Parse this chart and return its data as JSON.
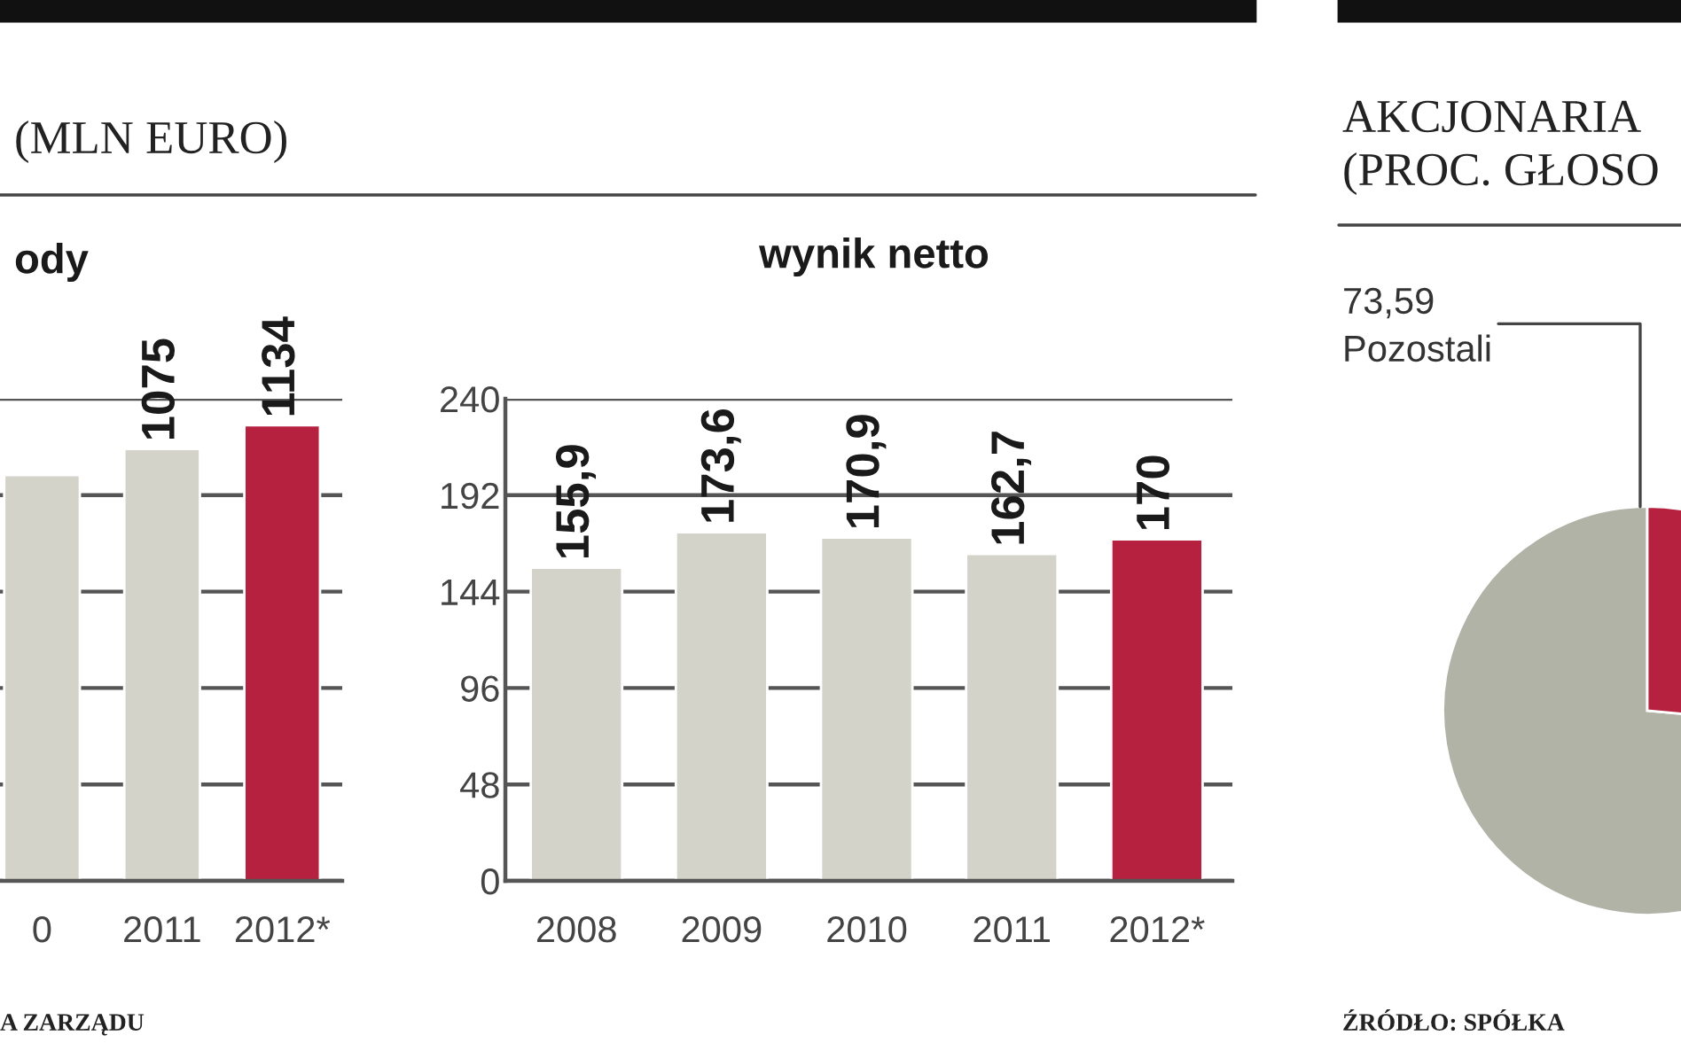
{
  "chart_data": [
    {
      "type": "bar",
      "title": "ody",
      "subtitle": "(MLN EURO)",
      "categories": [
        "0",
        "2011",
        "2012*"
      ],
      "values": [
        1010,
        1075,
        1134
      ],
      "colors": [
        "#d3d3c9",
        "#d3d3c9",
        "#b5213f"
      ],
      "value_labels": [
        null,
        "1075",
        "1134"
      ],
      "ylim": [
        0,
        1200
      ],
      "yticks": [
        {
          "value": 0,
          "label": null
        },
        {
          "value": 240,
          "label": null
        },
        {
          "value": 480,
          "label": null
        },
        {
          "value": 720,
          "label": null
        },
        {
          "value": 960,
          "label": null
        },
        {
          "value": 1200,
          "label": null
        }
      ],
      "grid": "y",
      "tick_labels": "x",
      "annotations": [
        "A ZARZĄDU"
      ]
    },
    {
      "type": "bar",
      "title": "wynik netto",
      "categories": [
        "2008",
        "2009",
        "2010",
        "2011",
        "2012*"
      ],
      "values": [
        155.9,
        173.6,
        170.9,
        162.7,
        170
      ],
      "colors": [
        "#d3d3c9",
        "#d3d3c9",
        "#d3d3c9",
        "#d3d3c9",
        "#b5213f"
      ],
      "value_labels": [
        "155,9",
        "173,6",
        "170,9",
        "162,7",
        "170"
      ],
      "ylim": [
        0,
        240
      ],
      "yticks": [
        0,
        48,
        96,
        144,
        192,
        240
      ],
      "grid": "y"
    },
    {
      "type": "pie",
      "title": "AKCJONARIA",
      "subtitle": "(PROC. GŁOSO",
      "categories": [
        "Pozostali",
        null
      ],
      "values": [
        73.59,
        26.41
      ],
      "colors": [
        "#b2b3a7",
        "#b5213f"
      ],
      "value_labels": [
        "73,59",
        null
      ],
      "annotations": [
        "ŹRÓDŁO: SPÓŁKA"
      ]
    }
  ]
}
